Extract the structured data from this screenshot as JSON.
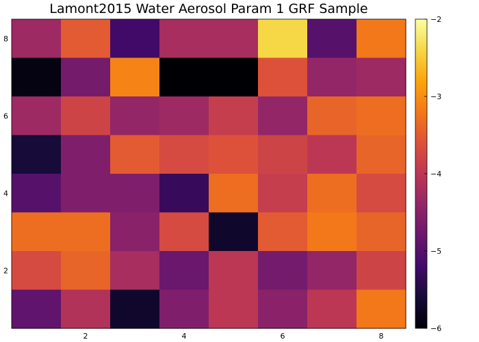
{
  "chart_data": {
    "type": "heatmap",
    "title": "Lamont2015 Water Aerosol Param 1 GRF Sample",
    "xlabel": "",
    "ylabel": "",
    "x_ticks": [
      "2",
      "4",
      "6",
      "8"
    ],
    "y_ticks": [
      "2",
      "4",
      "6",
      "8"
    ],
    "x_range": [
      0.5,
      8.5
    ],
    "y_range": [
      0.5,
      8.5
    ],
    "colorbar": {
      "colormap": "inferno",
      "range": [
        -6,
        -2
      ],
      "ticks": [
        "-2",
        "-3",
        "-4",
        "-5",
        "-6"
      ]
    },
    "z_rows_top_to_bottom": [
      [
        -4.3,
        -3.5,
        -5.2,
        -4.2,
        -4.2,
        -2.4,
        -5.0,
        -3.2
      ],
      [
        -5.9,
        -4.7,
        -3.1,
        -6.0,
        -6.0,
        -3.6,
        -4.4,
        -4.3
      ],
      [
        -4.3,
        -3.8,
        -4.4,
        -4.3,
        -3.9,
        -4.4,
        -3.4,
        -3.3
      ],
      [
        -5.6,
        -4.6,
        -3.5,
        -3.7,
        -3.6,
        -3.8,
        -4.0,
        -3.4
      ],
      [
        -5.0,
        -4.6,
        -4.6,
        -5.3,
        -3.3,
        -3.9,
        -3.3,
        -3.7
      ],
      [
        -3.3,
        -3.3,
        -4.5,
        -3.7,
        -5.7,
        -3.5,
        -3.2,
        -3.4
      ],
      [
        -3.7,
        -3.4,
        -4.2,
        -4.8,
        -4.0,
        -4.7,
        -4.4,
        -3.8
      ],
      [
        -4.9,
        -4.1,
        -5.7,
        -4.6,
        -4.0,
        -4.5,
        -4.0,
        -3.2
      ]
    ],
    "grid": false,
    "legend": "none"
  }
}
